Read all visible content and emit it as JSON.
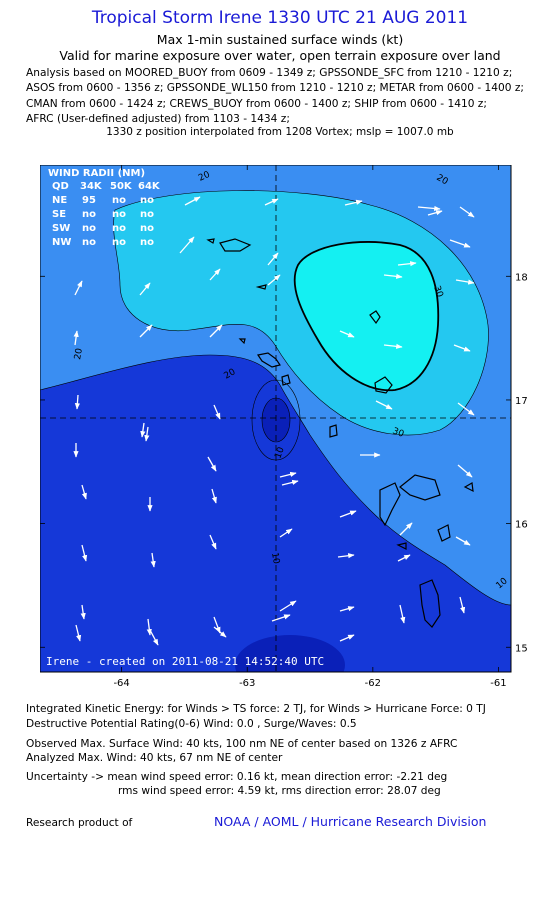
{
  "header": {
    "title": "Tropical Storm Irene 1330 UTC 21 AUG 2011",
    "subtitle_1": "Max 1-min sustained surface winds (kt)",
    "subtitle_2": "Valid for marine exposure over water, open terrain exposure over land",
    "analysis_lines": [
      "Analysis based on MOORED_BUOY from 0609 - 1349 z; GPSSONDE_SFC from 1210 - 1210 z;",
      "ASOS from 0600 - 1356 z; GPSSONDE_WL150 from 1210 - 1210 z; METAR from 0600 - 1400 z;",
      "CMAN from 0600 - 1424 z; CREWS_BUOY from 0600 - 1400 z; SHIP from 0600 - 1410 z;",
      "AFRC (User-defined adjusted) from 1103 - 1434 z;"
    ],
    "position_note": "1330 z position interpolated from 1208 Vortex; mslp = 1007.0 mb"
  },
  "map": {
    "lon_ticks": [
      "-64",
      "-63",
      "-62",
      "-61"
    ],
    "lat_ticks": [
      "18",
      "17",
      "16",
      "15"
    ],
    "lon_range": [
      -64.65,
      -60.9
    ],
    "lat_range": [
      14.8,
      18.9
    ],
    "center": {
      "lon": -62.75,
      "lat": 16.9
    },
    "colors": {
      "lt20": "#1538d8",
      "c20_30": "#3a8ef2",
      "c30_40": "#24c8f0",
      "gt40": "#14f0f2",
      "low": "#0a20b8",
      "land_outline": "#000000",
      "arrow": "#ffffff"
    },
    "contour_labels": [
      "20",
      "20",
      "20",
      "20",
      "30",
      "30",
      "10",
      "10",
      "10"
    ],
    "wind_radii": {
      "title": "WIND RADII (NM)",
      "columns": [
        "QD",
        "34K",
        "50K",
        "64K"
      ],
      "rows": [
        {
          "quad": "NE",
          "r34": "95",
          "r50": "no",
          "r64": "no"
        },
        {
          "quad": "SE",
          "r34": "no",
          "r50": "no",
          "r64": "no"
        },
        {
          "quad": "SW",
          "r34": "no",
          "r50": "no",
          "r64": "no"
        },
        {
          "quad": "NW",
          "r34": "no",
          "r50": "no",
          "r64": "no"
        }
      ]
    },
    "created_label": "Irene - created on 2011-08-21 14:52:40 UTC"
  },
  "footer": {
    "ike": "Integrated Kinetic Energy:  for Winds > TS force: 2 TJ,  for Winds > Hurricane Force: 0 TJ",
    "dpr": "Destructive Potential Rating(0-6)   Wind: 0.0 , Surge/Waves: 0.5",
    "observed": "Observed Max. Surface Wind: 40 kts, 100 nm NE of center based on 1326 z AFRC",
    "analyzed": "Analyzed Max. Wind: 40 kts, 67 nm NE of center",
    "uncertainty_1": "Uncertainty -> mean wind speed error: 0.16 kt,   mean direction error:  -2.21 deg",
    "uncertainty_2": "rms wind speed error: 4.59 kt,  rms direction error: 28.07 deg",
    "research_label": "Research product of",
    "research_org": "NOAA / AOML / Hurricane Research Division"
  }
}
